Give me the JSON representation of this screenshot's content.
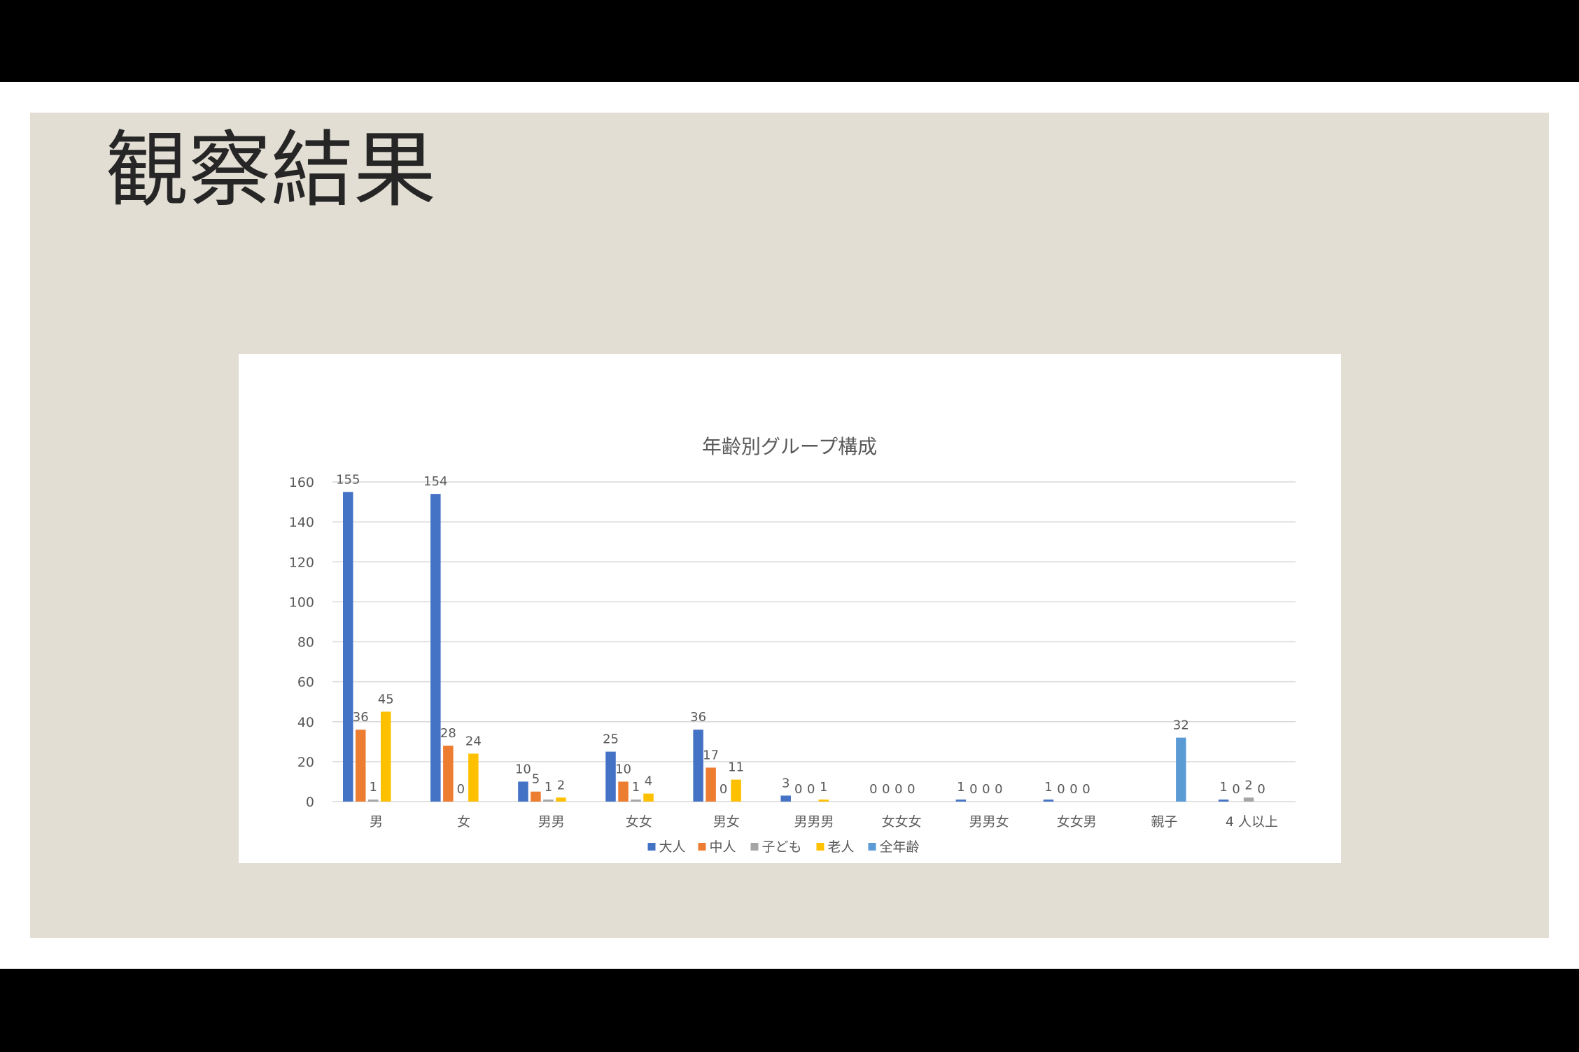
{
  "slide": {
    "title": "観察結果"
  },
  "colors": {
    "background_band": "#ffffff",
    "slide_background": "#e3ded3",
    "chart_background": "#ffffff",
    "gridline": "#d9d9d9",
    "text": "#595959"
  },
  "chart_data": {
    "type": "bar",
    "title": "年齢別グループ構成",
    "xlabel": "",
    "ylabel": "",
    "ylim": [
      0,
      160
    ],
    "yticks": [
      0,
      20,
      40,
      60,
      80,
      100,
      120,
      140,
      160
    ],
    "grid": true,
    "legend_position": "bottom",
    "categories": [
      "男",
      "女",
      "男男",
      "女女",
      "男女",
      "男男男",
      "女女女",
      "男男女",
      "女女男",
      "親子",
      "4 人以上"
    ],
    "series": [
      {
        "name": "大人",
        "color": "#4472c4",
        "values": [
          155,
          154,
          10,
          25,
          36,
          3,
          0,
          1,
          1,
          null,
          1
        ],
        "labels": [
          "155",
          "154",
          "10",
          "25",
          "36",
          "3",
          "0",
          "1",
          "1",
          "",
          "1"
        ]
      },
      {
        "name": "中人",
        "color": "#ed7d31",
        "values": [
          36,
          28,
          5,
          10,
          17,
          0,
          0,
          0,
          0,
          null,
          0
        ],
        "labels": [
          "36",
          "28",
          "5",
          "10",
          "17",
          "0",
          "0",
          "0",
          "0",
          "",
          "0"
        ]
      },
      {
        "name": "子ども",
        "color": "#a5a5a5",
        "values": [
          1,
          0,
          1,
          1,
          0,
          0,
          0,
          0,
          0,
          null,
          2
        ],
        "labels": [
          "1",
          "0",
          "1",
          "1",
          "0",
          "0",
          "0",
          "0",
          "0",
          "",
          "2"
        ]
      },
      {
        "name": "老人",
        "color": "#ffc000",
        "values": [
          45,
          24,
          2,
          4,
          11,
          1,
          0,
          0,
          0,
          null,
          0
        ],
        "labels": [
          "45",
          "24",
          "2",
          "4",
          "11",
          "1",
          "0",
          "0",
          "0",
          "",
          "0"
        ]
      },
      {
        "name": "全年齢",
        "color": "#5b9bd5",
        "values": [
          null,
          null,
          null,
          null,
          null,
          null,
          null,
          null,
          null,
          32,
          null
        ],
        "labels": [
          "",
          "",
          "",
          "",
          "",
          "",
          "",
          "",
          "",
          "32",
          ""
        ]
      }
    ]
  }
}
